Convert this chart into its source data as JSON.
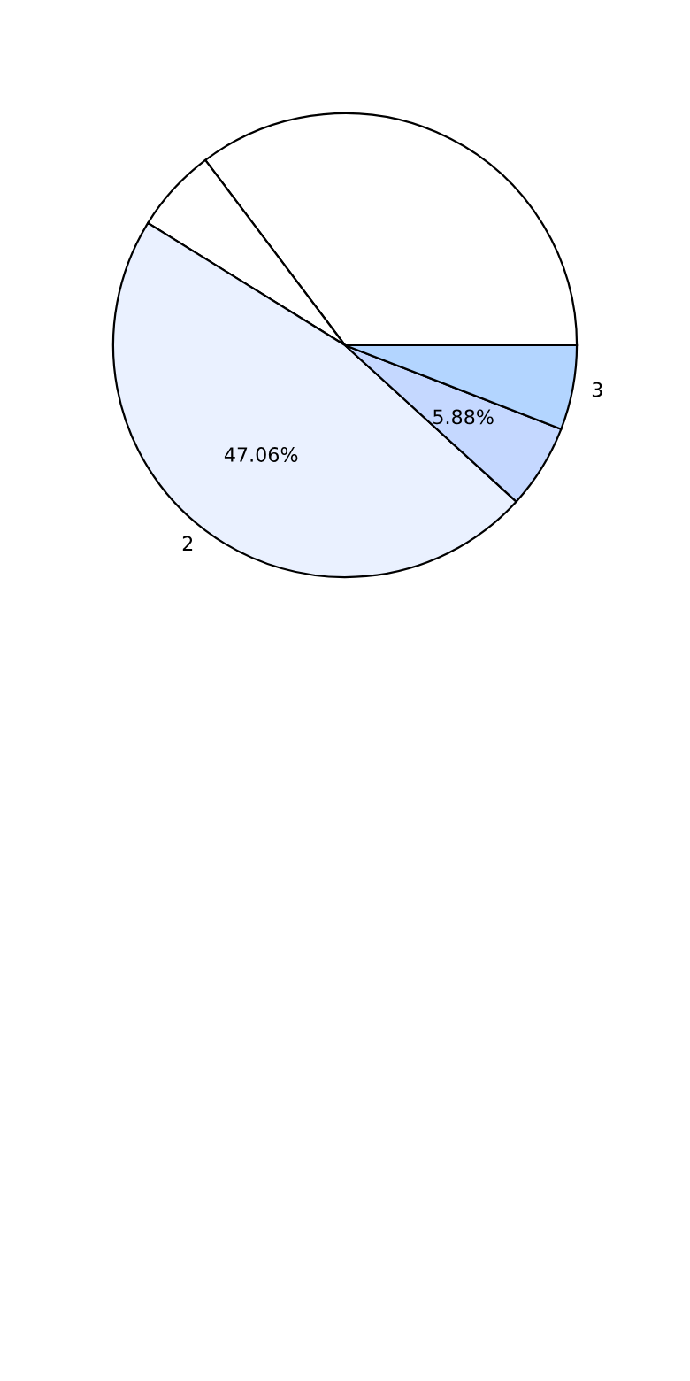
{
  "chart_data": {
    "type": "pie",
    "categories": [
      null,
      null,
      "2",
      null,
      "3"
    ],
    "values": [
      35.29,
      5.88,
      47.06,
      5.88,
      5.89
    ],
    "colors": [
      "#ffffff",
      "#ffffff",
      "#eaf1ff",
      "#c5d8ff",
      "#b3d5ff"
    ],
    "value_labels": [
      null,
      null,
      "47.06%",
      "5.88%",
      null
    ]
  }
}
